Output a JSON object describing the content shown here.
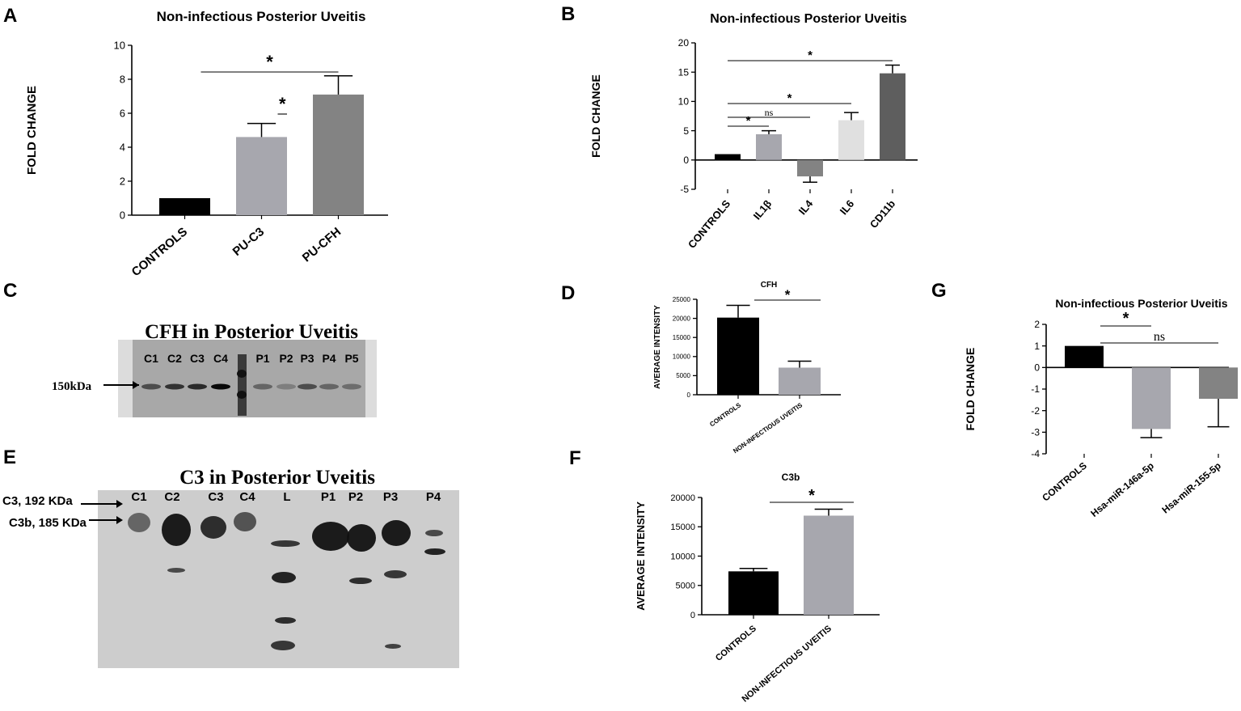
{
  "panels": {
    "A": "A",
    "B": "B",
    "C": "C",
    "D": "D",
    "E": "E",
    "F": "F",
    "G": "G"
  },
  "blot_c": {
    "title": "CFH  in Posterior Uveitis",
    "lanes": [
      "C1",
      "C2",
      "C3",
      "C4",
      "L",
      "P1",
      "P2",
      "P3",
      "P4",
      "P5"
    ],
    "marker": "150kDa"
  },
  "blot_e": {
    "title": "C3  in Posterior Uveitis",
    "lanes": [
      "C1",
      "C2",
      "C3",
      "C4",
      "L",
      "P1",
      "P2",
      "P3",
      "P4"
    ],
    "marker_c3": "C3, 192 KDa",
    "marker_c3b": "C3b, 185 KDa"
  },
  "colors": {
    "black": "#000000",
    "light_gray": "#a7a7ae",
    "mid_gray": "#838383",
    "pale_gray": "#e0e0e0",
    "dark_gray": "#5e5e5e"
  },
  "chart_data": [
    {
      "id": "A",
      "type": "bar",
      "title": "Non-infectious Posterior Uveitis",
      "ylabel": "FOLD CHANGE",
      "categories": [
        "CONTROLS",
        "PU-C3",
        "PU-CFH"
      ],
      "values": [
        1,
        4.6,
        7.1
      ],
      "errors": [
        0,
        0.8,
        1.1
      ],
      "colors": [
        "#000000",
        "#a7a7ae",
        "#838383"
      ],
      "ylim": [
        0,
        10
      ],
      "yticks": [
        0,
        2,
        4,
        6,
        8,
        10
      ],
      "significance": [
        {
          "from": 1,
          "to": 1.5,
          "label": "*"
        },
        {
          "from": 0,
          "to": 2,
          "label": "*"
        }
      ]
    },
    {
      "id": "B",
      "type": "bar",
      "title": "Non-infectious Posterior Uveitis",
      "ylabel": "FOLD CHANGE",
      "categories": [
        "CONTROLS",
        "IL1β",
        "IL4",
        "IL6",
        "CD11b"
      ],
      "values": [
        1,
        4.4,
        -2.8,
        6.8,
        14.8
      ],
      "errors": [
        0,
        0.6,
        1.0,
        1.3,
        1.4
      ],
      "colors": [
        "#000000",
        "#a7a7ae",
        "#838383",
        "#e0e0e0",
        "#5e5e5e"
      ],
      "ylim": [
        -5,
        20
      ],
      "yticks": [
        -5,
        0,
        5,
        10,
        15,
        20
      ],
      "significance": [
        {
          "from": 0,
          "to": 4,
          "label": "*"
        },
        {
          "from": 0,
          "to": 3,
          "label": "*"
        },
        {
          "from": 0,
          "to": 2,
          "label": "ns"
        },
        {
          "from": 0,
          "to": 1,
          "label": "*"
        }
      ]
    },
    {
      "id": "D",
      "type": "bar",
      "title": "CFH",
      "ylabel": "AVERAGE INTENSITY",
      "categories": [
        "CONTROLS",
        "NON-INFECTIOUS UVEITIS"
      ],
      "values": [
        20200,
        7100
      ],
      "errors": [
        3200,
        1700
      ],
      "colors": [
        "#000000",
        "#a7a7ae"
      ],
      "ylim": [
        0,
        25000
      ],
      "yticks": [
        0,
        5000,
        10000,
        15000,
        20000,
        25000
      ],
      "significance": [
        {
          "from": 0,
          "to": 1.5,
          "label": "*"
        }
      ]
    },
    {
      "id": "F",
      "type": "bar",
      "title": "C3b",
      "ylabel": "AVERAGE INTENSITY",
      "categories": [
        "CONTROLS",
        "NON-INFECTIOUS UVEITIS"
      ],
      "values": [
        7400,
        16900
      ],
      "errors": [
        500,
        1100
      ],
      "colors": [
        "#000000",
        "#a7a7ae"
      ],
      "ylim": [
        0,
        20000
      ],
      "yticks": [
        0,
        5000,
        10000,
        15000,
        20000
      ],
      "significance": [
        {
          "from": 0,
          "to": 1.5,
          "label": "*"
        }
      ]
    },
    {
      "id": "G",
      "type": "bar",
      "title": "Non-infectious Posterior Uveitis",
      "ylabel": "FOLD CHANGE",
      "categories": [
        "CONTROLS",
        "Hsa-miR-146a-5p",
        "Hsa-miR-155-5p"
      ],
      "values": [
        1,
        -2.85,
        -1.45
      ],
      "errors": [
        0,
        0.4,
        1.3
      ],
      "colors": [
        "#000000",
        "#a7a7ae",
        "#838383"
      ],
      "ylim": [
        -4,
        2
      ],
      "yticks": [
        -4,
        -3,
        -2,
        -1,
        0,
        1,
        2
      ],
      "significance": [
        {
          "from": 0,
          "to": 1,
          "label": "*"
        },
        {
          "from": 0,
          "to": 2,
          "label": "ns"
        }
      ]
    }
  ]
}
